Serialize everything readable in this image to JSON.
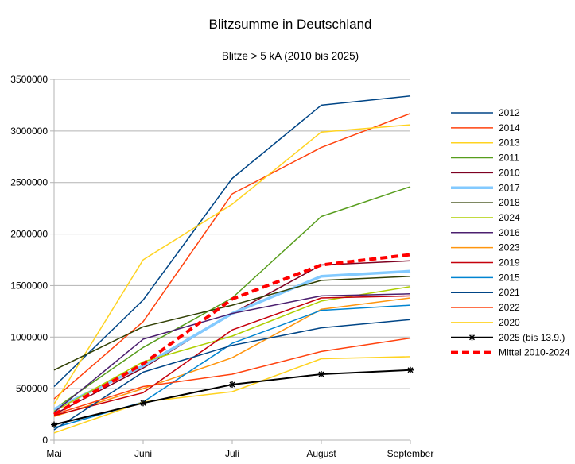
{
  "chart_data": {
    "type": "line",
    "title": "Blitzsumme in Deutschland",
    "subtitle": "Blitze > 5 kA (2010 bis 2025)",
    "xlabel": "",
    "ylabel": "",
    "categories": [
      "Mai",
      "Juni",
      "Juli",
      "August",
      "September"
    ],
    "ylim": [
      0,
      3500000
    ],
    "yticks": [
      "0",
      "500000",
      "1000000",
      "1500000",
      "2000000",
      "2500000",
      "3000000",
      "3500000"
    ],
    "grid": true,
    "legend_position": "right",
    "series": [
      {
        "name": "2012",
        "color": "#004586",
        "values": [
          520000,
          1360000,
          2540000,
          3250000,
          3340000
        ]
      },
      {
        "name": "2014",
        "color": "#ff420e",
        "values": [
          400000,
          1150000,
          2390000,
          2840000,
          3170000
        ]
      },
      {
        "name": "2013",
        "color": "#ffd320",
        "values": [
          350000,
          1750000,
          2290000,
          2990000,
          3060000
        ]
      },
      {
        "name": "2011",
        "color": "#579d1c",
        "values": [
          300000,
          900000,
          1380000,
          2170000,
          2460000
        ]
      },
      {
        "name": "2010",
        "color": "#7e0021",
        "values": [
          250000,
          700000,
          1230000,
          1700000,
          1740000
        ]
      },
      {
        "name": "2017",
        "color": "#83caff",
        "width": 3.5,
        "values": [
          300000,
          720000,
          1230000,
          1590000,
          1640000
        ]
      },
      {
        "name": "2018",
        "color": "#314004",
        "values": [
          680000,
          1100000,
          1310000,
          1550000,
          1590000
        ]
      },
      {
        "name": "2024",
        "color": "#aecf00",
        "values": [
          280000,
          760000,
          1010000,
          1350000,
          1490000
        ]
      },
      {
        "name": "2016",
        "color": "#4b1f6f",
        "values": [
          270000,
          980000,
          1230000,
          1400000,
          1420000
        ]
      },
      {
        "name": "2023",
        "color": "#ff950e",
        "values": [
          230000,
          500000,
          800000,
          1270000,
          1380000
        ]
      },
      {
        "name": "2019",
        "color": "#c5000b",
        "values": [
          240000,
          460000,
          1070000,
          1380000,
          1400000
        ]
      },
      {
        "name": "2015",
        "color": "#0084d1",
        "values": [
          120000,
          370000,
          940000,
          1260000,
          1310000
        ]
      },
      {
        "name": "2021",
        "color": "#004586",
        "values": [
          100000,
          660000,
          920000,
          1090000,
          1170000
        ]
      },
      {
        "name": "2022",
        "color": "#ff420e",
        "values": [
          250000,
          520000,
          640000,
          860000,
          990000
        ]
      },
      {
        "name": "2020",
        "color": "#ffd320",
        "values": [
          70000,
          370000,
          470000,
          790000,
          810000
        ]
      },
      {
        "name": "2025 (bis 13.9.)",
        "color": "#000000",
        "width": 2,
        "marker": "star",
        "values": [
          150000,
          360000,
          540000,
          640000,
          680000
        ]
      },
      {
        "name": "Mittel 2010-2024",
        "color": "#ff0000",
        "width": 4,
        "dashed": true,
        "values": [
          250000,
          740000,
          1370000,
          1700000,
          1800000
        ]
      }
    ]
  }
}
